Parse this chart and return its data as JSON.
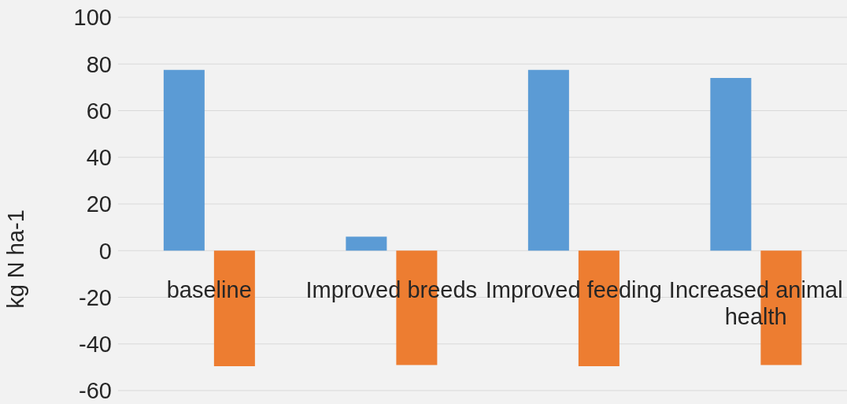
{
  "chart_data": {
    "type": "bar",
    "ylabel": "kg N ha-1",
    "categories": [
      "baseline",
      "Improved breeds",
      "Improved feeding",
      "Increased animal health"
    ],
    "series": [
      {
        "color": "#5b9bd5",
        "values": [
          77.5,
          6,
          77.5,
          74
        ]
      },
      {
        "color": "#ed7d31",
        "values": [
          -49.5,
          -49,
          -49.5,
          -49
        ]
      }
    ],
    "ylim": [
      -60,
      100
    ],
    "yticks": [
      -60,
      -40,
      -20,
      0,
      20,
      40,
      60,
      80,
      100
    ],
    "grid": "y"
  }
}
